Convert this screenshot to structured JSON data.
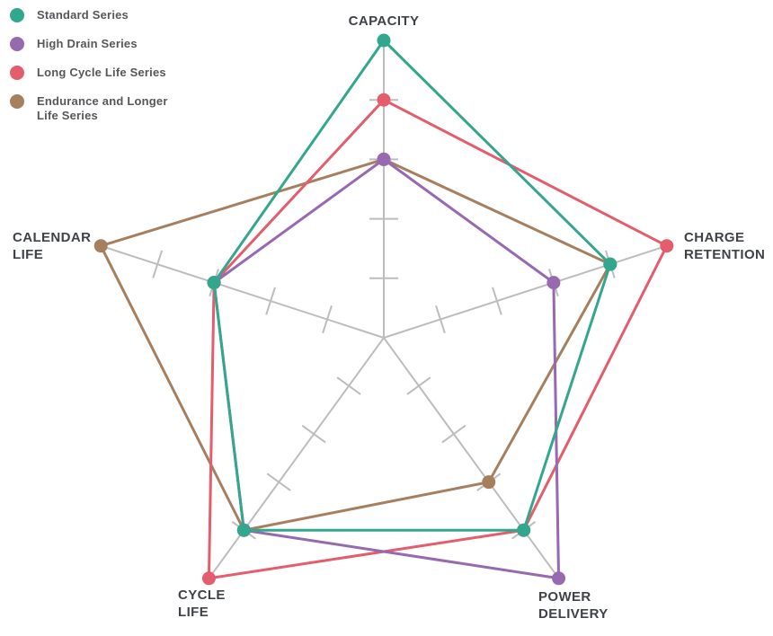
{
  "legend": {
    "items": [
      {
        "label": "Standard Series",
        "color": "#33a78d"
      },
      {
        "label": "High Drain Series",
        "color": "#9669b0"
      },
      {
        "label": "Long Cycle Life Series",
        "color": "#e35d6c"
      },
      {
        "label": "Endurance and Longer Life Series",
        "color": "#a67f5f"
      }
    ]
  },
  "axis_labels": {
    "capacity": "CAPACITY",
    "charge_retention": "CHARGE RETENTION",
    "power_delivery": "POWER DELIVERY",
    "cycle_life": "CYCLE LIFE",
    "calendar_life": "CALENDAR LIFE"
  },
  "chart_data": {
    "type": "radar",
    "title": "",
    "categories": [
      "CAPACITY",
      "CHARGE RETENTION",
      "POWER DELIVERY",
      "CYCLE LIFE",
      "CALENDAR LIFE"
    ],
    "scale": {
      "min": 0,
      "max": 5,
      "tick_interval": 1,
      "tick_marks": [
        1,
        2,
        3,
        4
      ]
    },
    "series": [
      {
        "name": "Standard Series",
        "color": "#33a78d",
        "values": [
          5,
          4,
          4,
          4,
          3
        ]
      },
      {
        "name": "High Drain Series",
        "color": "#9669b0",
        "values": [
          3,
          3,
          5,
          4,
          3
        ]
      },
      {
        "name": "Long Cycle Life Series",
        "color": "#e35d6c",
        "values": [
          4,
          5,
          4,
          5,
          3
        ]
      },
      {
        "name": "Endurance and Longer Life Series",
        "color": "#a67f5f",
        "values": [
          3,
          4,
          3,
          4,
          5
        ]
      }
    ],
    "axis_color": "#bdbdbd",
    "grid": "spokes-with-tick-marks-only",
    "legend_position": "top-left",
    "marker": "filled-circle"
  }
}
